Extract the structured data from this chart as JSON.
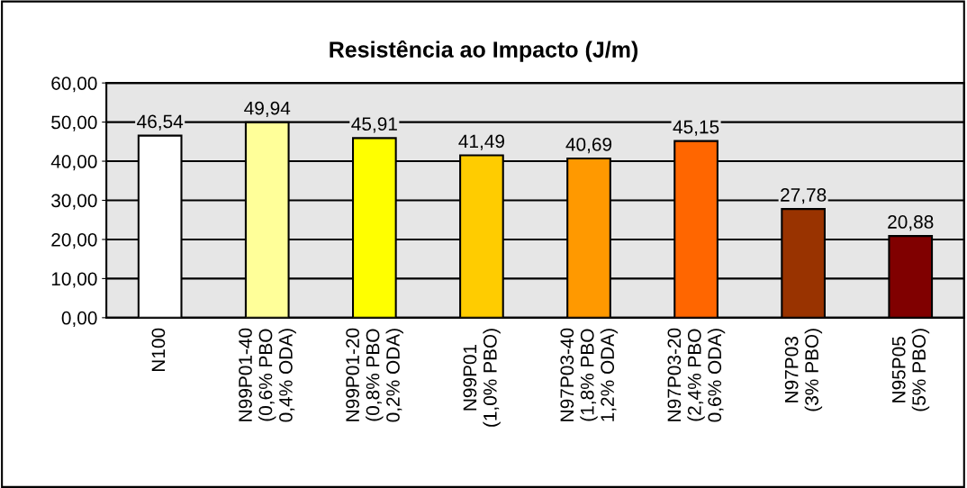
{
  "chart_data": {
    "type": "bar",
    "title": "Resistência ao Impacto (J/m)",
    "categories": [
      "N100",
      "N99P01-40\n(0,6% PBO\n0,4% ODA)",
      "N99P01-20\n(0,8% PBO\n0,2% ODA)",
      "N99P01\n(1,0% PBO)",
      "N97P03-40\n(1,8% PBO\n1,2% ODA)",
      "N97P03-20\n(2,4% PBO\n0,6% ODA)",
      "N97P03\n(3% PBO)",
      "N95P05\n(5% PBO)"
    ],
    "values": [
      46.54,
      49.94,
      45.91,
      41.49,
      40.69,
      45.15,
      27.78,
      20.88
    ],
    "value_labels": [
      "46,54",
      "49,94",
      "45,91",
      "41,49",
      "40,69",
      "45,15",
      "27,78",
      "20,88"
    ],
    "colors": [
      "#ffffff",
      "#ffff99",
      "#ffff00",
      "#ffcc00",
      "#ff9900",
      "#ff6600",
      "#993300",
      "#800000"
    ],
    "ylim": [
      0,
      60
    ],
    "yticks": [
      {
        "value": 0,
        "label": "0,00"
      },
      {
        "value": 10,
        "label": "10,00"
      },
      {
        "value": 20,
        "label": "20,00"
      },
      {
        "value": 30,
        "label": "30,00"
      },
      {
        "value": 40,
        "label": "40,00"
      },
      {
        "value": 50,
        "label": "50,00"
      },
      {
        "value": 60,
        "label": "60,00"
      }
    ],
    "grid": "y",
    "legend": false
  }
}
